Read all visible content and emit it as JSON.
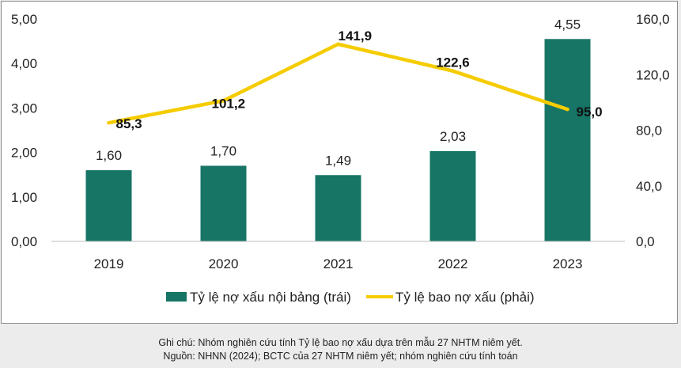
{
  "chart_data": {
    "type": "bar+line",
    "categories": [
      "2019",
      "2020",
      "2021",
      "2022",
      "2023"
    ],
    "series": [
      {
        "name": "Tỷ lệ nợ xấu nội bảng (trái)",
        "type": "bar",
        "axis": "left",
        "values": [
          1.6,
          1.7,
          1.49,
          2.03,
          4.55
        ],
        "labels": [
          "1,60",
          "1,70",
          "1,49",
          "2,03",
          "4,55"
        ],
        "color": "#167565"
      },
      {
        "name": "Tỷ lệ bao nợ xấu (phải)",
        "type": "line",
        "axis": "right",
        "values": [
          85.3,
          101.2,
          141.9,
          122.6,
          95.0
        ],
        "labels": [
          "85,3",
          "101,2",
          "141,9",
          "122,6",
          "95,0"
        ],
        "color": "#f5cc00"
      }
    ],
    "left_axis": {
      "ylim": [
        0,
        5
      ],
      "ticks": [
        "0,00",
        "1,00",
        "2,00",
        "3,00",
        "4,00",
        "5,00"
      ]
    },
    "right_axis": {
      "ylim": [
        0,
        160
      ],
      "ticks": [
        "0,0",
        "40,0",
        "80,0",
        "120,0",
        "160,0"
      ]
    },
    "grid": false,
    "legend_position": "bottom"
  },
  "notes": {
    "line1": "Ghi chú: Nhóm nghiên cứu tính Tỷ lệ bao nợ xấu dựa trên mẫu 27 NHTM niêm yết.",
    "line2": "Nguồn: NHNN (2024); BCTC của 27 NHTM niêm yết; nhóm nghiên cứu tính toán"
  }
}
